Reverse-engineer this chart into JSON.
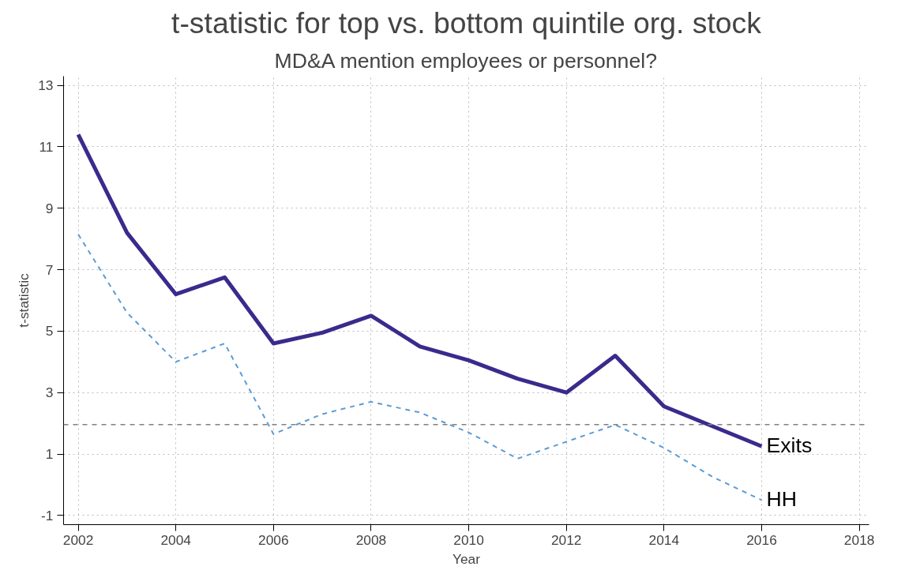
{
  "chart_data": {
    "type": "line",
    "title": "t-statistic for top vs. bottom quintile org. stock",
    "subtitle": "MD&A mention employees or personnel?",
    "xlabel": "Year",
    "ylabel": "t-statistic",
    "x": [
      2002,
      2003,
      2004,
      2005,
      2006,
      2007,
      2008,
      2009,
      2010,
      2011,
      2012,
      2013,
      2014,
      2015,
      2016
    ],
    "series": [
      {
        "name": "Exits",
        "color": "#3b2a8c",
        "line_style": "solid",
        "values": [
          11.4,
          8.2,
          6.2,
          6.75,
          4.6,
          4.95,
          5.5,
          4.5,
          4.05,
          3.45,
          3.0,
          4.2,
          2.55,
          1.9,
          1.25
        ]
      },
      {
        "name": "HH",
        "color": "#5b9bd5",
        "line_style": "dashed",
        "values": [
          8.15,
          5.6,
          4.0,
          4.6,
          1.65,
          2.3,
          2.7,
          2.35,
          1.7,
          0.85,
          1.4,
          1.95,
          1.2,
          0.25,
          -0.5
        ]
      }
    ],
    "ref_lines": [
      {
        "axis": "y",
        "value": 1.96,
        "label": null,
        "color": "#808080",
        "line_style": "dashed"
      }
    ],
    "xlim": [
      2001.7,
      2018.2
    ],
    "ylim": [
      -1.3,
      13.3
    ],
    "xticks": [
      2002,
      2004,
      2006,
      2008,
      2010,
      2012,
      2014,
      2016,
      2018
    ],
    "yticks": [
      -1,
      1,
      3,
      5,
      7,
      9,
      11,
      13
    ],
    "grid": true,
    "marker": "none"
  }
}
